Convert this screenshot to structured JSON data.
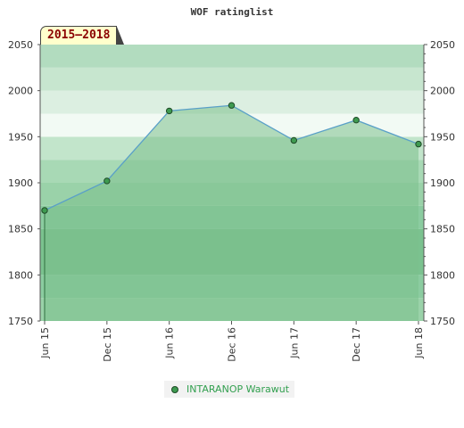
{
  "chart_data": {
    "type": "area",
    "title": "WOF ratinglist",
    "badge": "2015–2018",
    "categories": [
      "Jun 15",
      "Dec 15",
      "Jun 16",
      "Dec 16",
      "Jun 17",
      "Dec 17",
      "Jun 18"
    ],
    "series": [
      {
        "name": "INTARANOP Warawut",
        "values": [
          1870,
          1902,
          1978,
          1984,
          1946,
          1968,
          1942
        ]
      }
    ],
    "ylim": [
      1750,
      2050
    ],
    "y_ticks": [
      "1750",
      "1800",
      "1850",
      "1900",
      "1950",
      "2000",
      "2050"
    ],
    "y_axis": "left and right",
    "grid": false,
    "legend_position": "bottom",
    "colors": {
      "area_fill": "#7bbf8c",
      "line": "#5aa0c8",
      "marker": "#3e9a50",
      "band_colors": [
        "#9ad2a9",
        "#8bcca0",
        "#7bc28f",
        "#7bc28f",
        "#8bcca0",
        "#9ad2a9",
        "#a8d9b5",
        "#c2e5cb",
        "#f2faf4",
        "#dcefe1",
        "#c7e6cf",
        "#b2dcbf"
      ]
    }
  }
}
